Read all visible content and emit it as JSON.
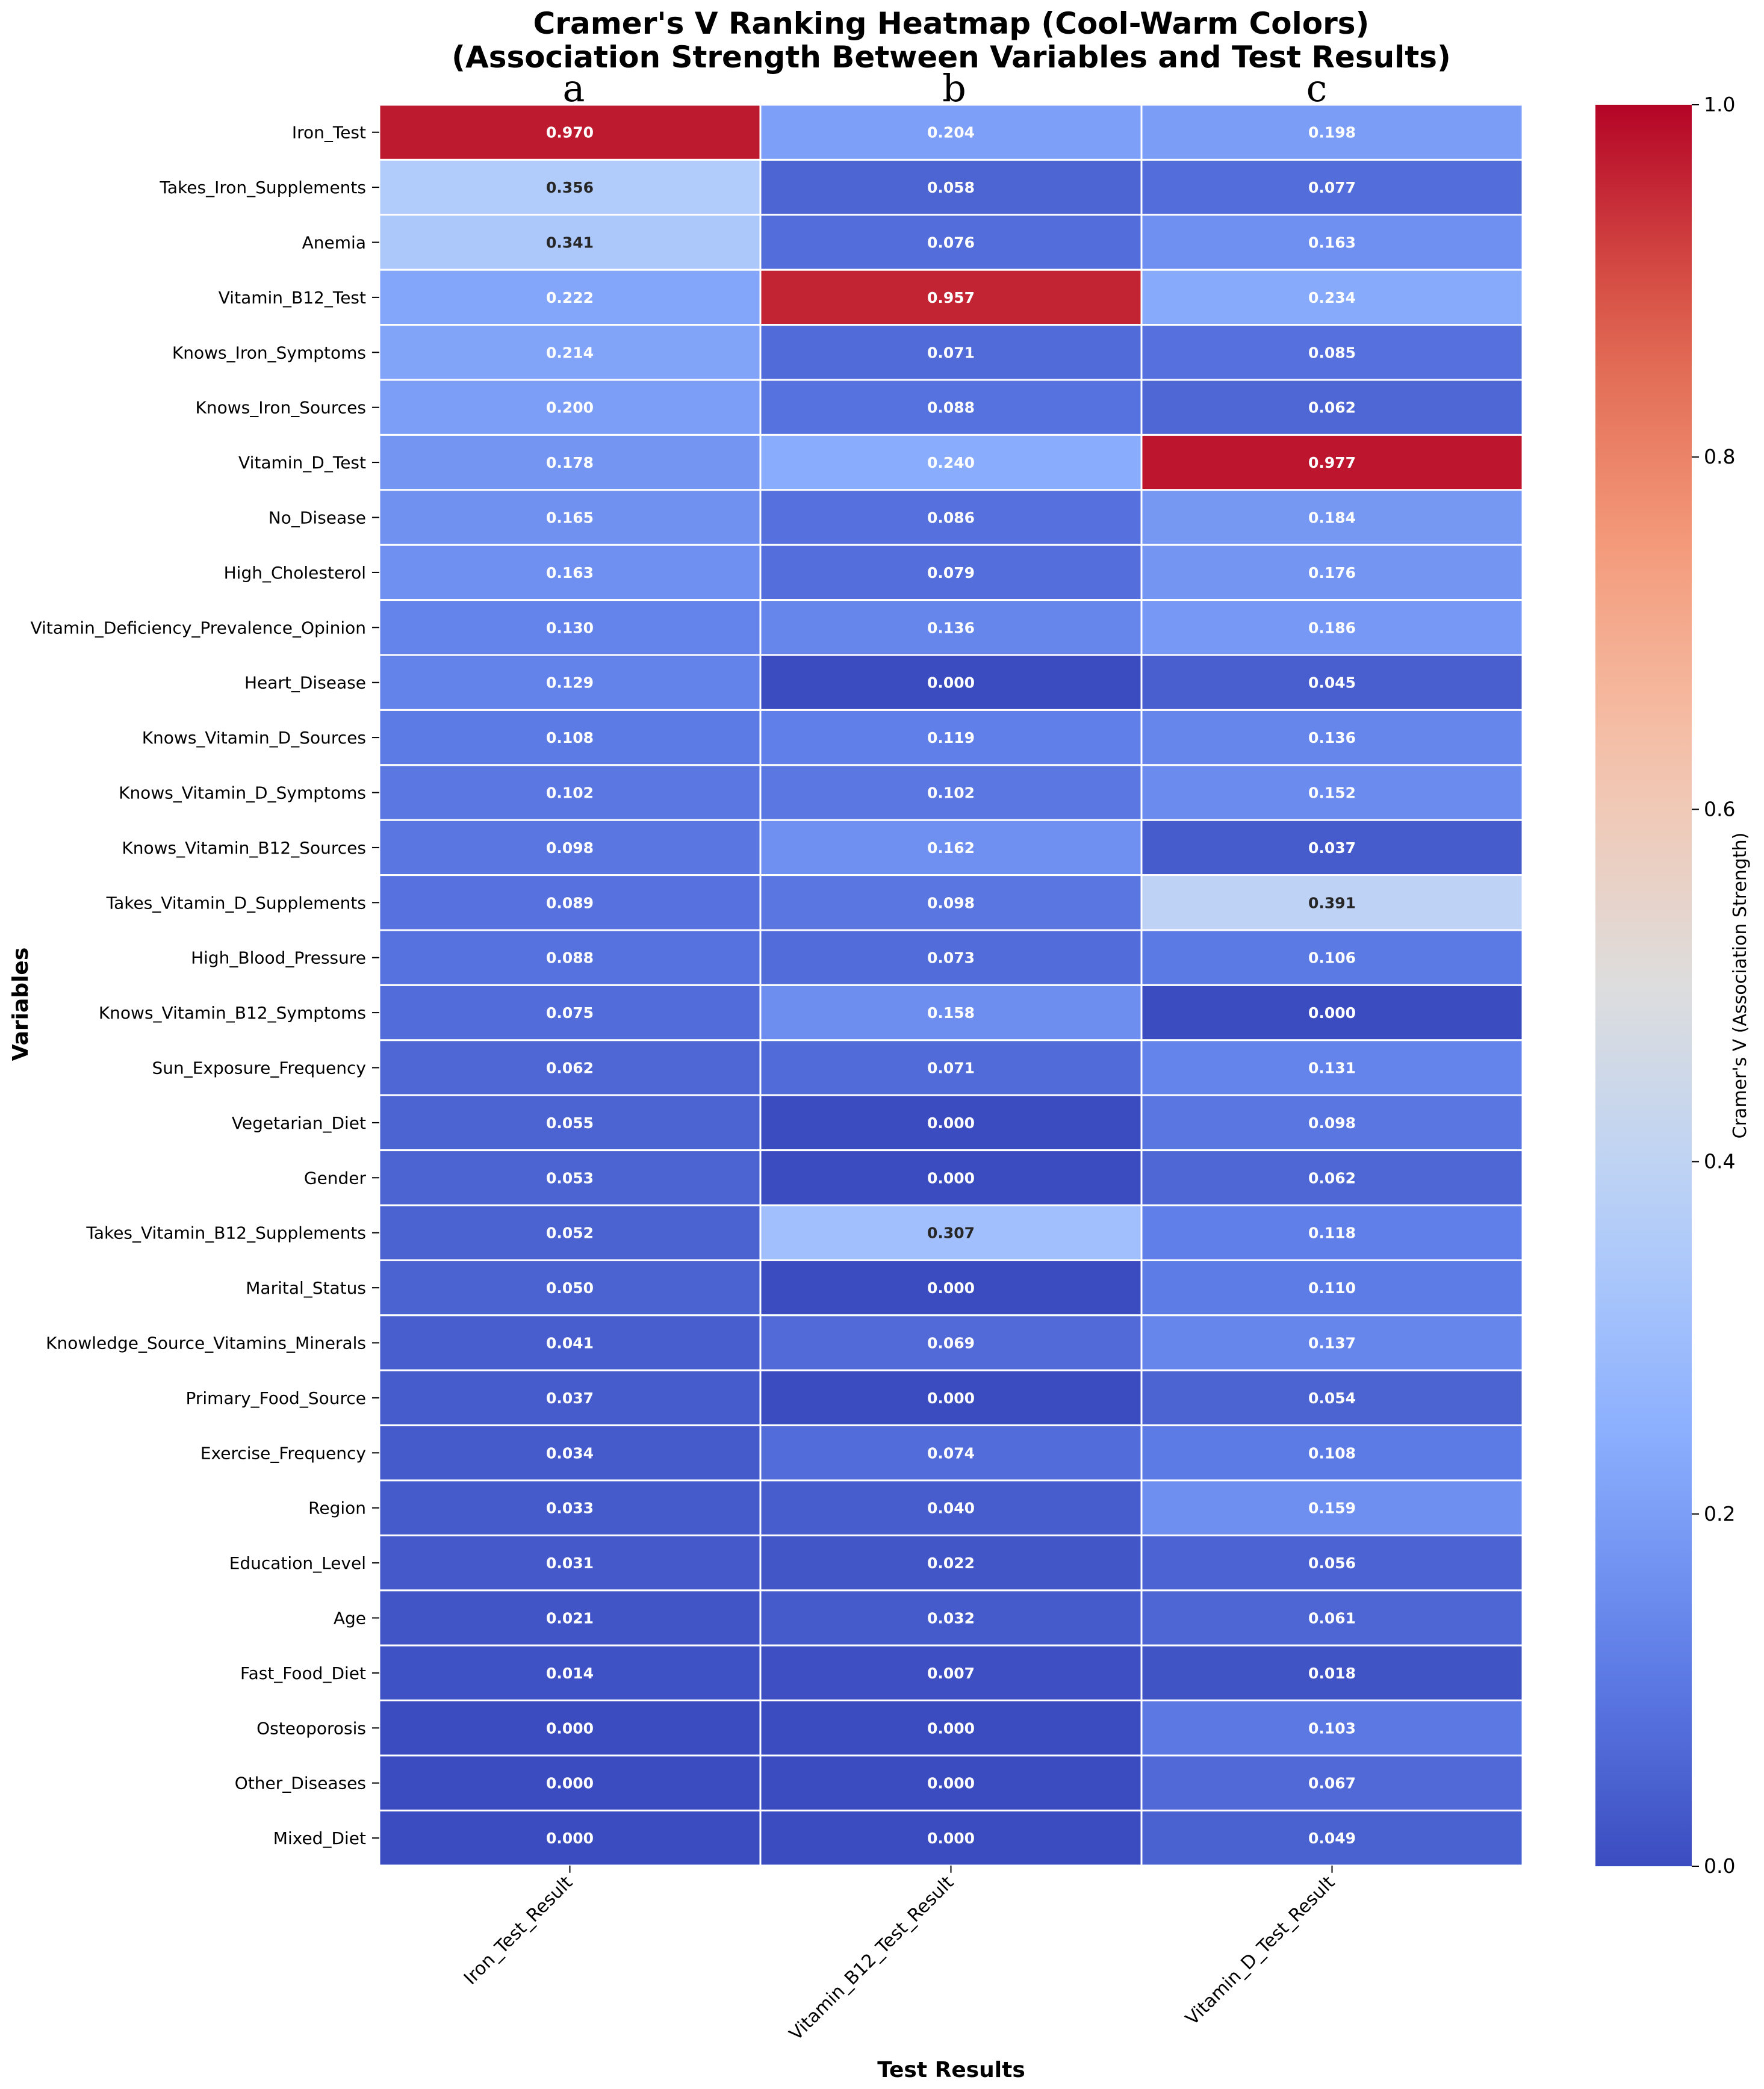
{
  "chart_data": {
    "type": "heatmap",
    "title_lines": [
      "Cramer's V Ranking Heatmap (Cool-Warm Colors)",
      "(Association Strength Between Variables and Test Results)"
    ],
    "panel_letters": [
      "a",
      "b",
      "c"
    ],
    "xlabel": "Test Results",
    "ylabel": "Variables",
    "columns": [
      "Iron_Test_Result",
      "Vitamin_B12_Test_Result",
      "Vitamin_D_Test_Result"
    ],
    "rows": [
      "Iron_Test",
      "Takes_Iron_Supplements",
      "Anemia",
      "Vitamin_B12_Test",
      "Knows_Iron_Symptoms",
      "Knows_Iron_Sources",
      "Vitamin_D_Test",
      "No_Disease",
      "High_Cholesterol",
      "Vitamin_Deficiency_Prevalence_Opinion",
      "Heart_Disease",
      "Knows_Vitamin_D_Sources",
      "Knows_Vitamin_D_Symptoms",
      "Knows_Vitamin_B12_Sources",
      "Takes_Vitamin_D_Supplements",
      "High_Blood_Pressure",
      "Knows_Vitamin_B12_Symptoms",
      "Sun_Exposure_Frequency",
      "Vegetarian_Diet",
      "Gender",
      "Takes_Vitamin_B12_Supplements",
      "Marital_Status",
      "Knowledge_Source_Vitamins_Minerals",
      "Primary_Food_Source",
      "Exercise_Frequency",
      "Region",
      "Education_Level",
      "Age",
      "Fast_Food_Diet",
      "Osteoporosis",
      "Other_Diseases",
      "Mixed_Diet"
    ],
    "values": [
      [
        "0.970",
        "0.204",
        "0.198"
      ],
      [
        "0.356",
        "0.058",
        "0.077"
      ],
      [
        "0.341",
        "0.076",
        "0.163"
      ],
      [
        "0.222",
        "0.957",
        "0.234"
      ],
      [
        "0.214",
        "0.071",
        "0.085"
      ],
      [
        "0.200",
        "0.088",
        "0.062"
      ],
      [
        "0.178",
        "0.240",
        "0.977"
      ],
      [
        "0.165",
        "0.086",
        "0.184"
      ],
      [
        "0.163",
        "0.079",
        "0.176"
      ],
      [
        "0.130",
        "0.136",
        "0.186"
      ],
      [
        "0.129",
        "0.000",
        "0.045"
      ],
      [
        "0.108",
        "0.119",
        "0.136"
      ],
      [
        "0.102",
        "0.102",
        "0.152"
      ],
      [
        "0.098",
        "0.162",
        "0.037"
      ],
      [
        "0.089",
        "0.098",
        "0.391"
      ],
      [
        "0.088",
        "0.073",
        "0.106"
      ],
      [
        "0.075",
        "0.158",
        "0.000"
      ],
      [
        "0.062",
        "0.071",
        "0.131"
      ],
      [
        "0.055",
        "0.000",
        "0.098"
      ],
      [
        "0.053",
        "0.000",
        "0.062"
      ],
      [
        "0.052",
        "0.307",
        "0.118"
      ],
      [
        "0.050",
        "0.000",
        "0.110"
      ],
      [
        "0.041",
        "0.069",
        "0.137"
      ],
      [
        "0.037",
        "0.000",
        "0.054"
      ],
      [
        "0.034",
        "0.074",
        "0.108"
      ],
      [
        "0.033",
        "0.040",
        "0.159"
      ],
      [
        "0.031",
        "0.022",
        "0.056"
      ],
      [
        "0.021",
        "0.032",
        "0.061"
      ],
      [
        "0.014",
        "0.007",
        "0.018"
      ],
      [
        "0.000",
        "0.000",
        "0.103"
      ],
      [
        "0.000",
        "0.000",
        "0.067"
      ],
      [
        "0.000",
        "0.000",
        "0.049"
      ]
    ],
    "colorbar": {
      "label": "Cramer's V (Association Strength)",
      "range": [
        0,
        1
      ],
      "ticks": [
        "0.0",
        "0.2",
        "0.4",
        "0.6",
        "0.8",
        "1.0"
      ],
      "colormap": "coolwarm",
      "colors": {
        "low": "#3b4cc0",
        "mid": "#dddddd",
        "high": "#b40426"
      }
    }
  }
}
